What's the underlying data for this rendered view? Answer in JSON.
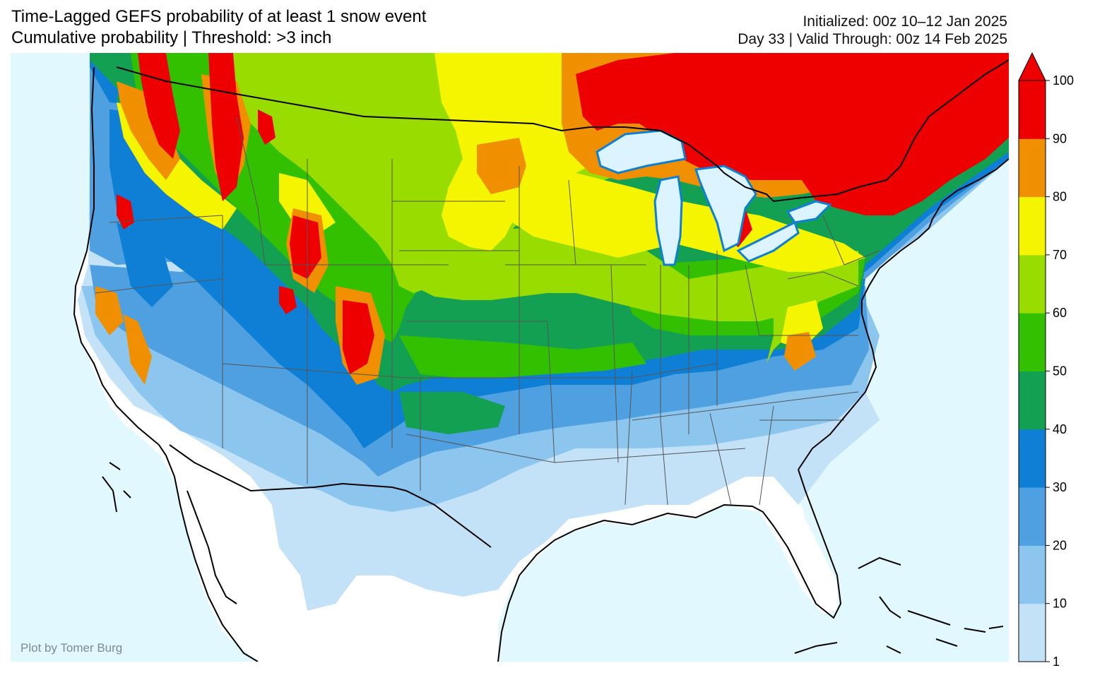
{
  "header": {
    "title_line1": "Time-Lagged GEFS probability of at least 1 snow event",
    "title_line2": "Cumulative probability | Threshold: >3 inch",
    "initialized": "Initialized: 00z 10–12 Jan 2025",
    "valid": "Day 33 | Valid Through: 00z 14 Feb 2025"
  },
  "credit": "Plot by Tomer Burg",
  "colorbar": {
    "ticks": [
      "1",
      "10",
      "20",
      "30",
      "40",
      "50",
      "60",
      "70",
      "80",
      "90",
      "100"
    ],
    "colors": [
      "#c3e2f8",
      "#8cc6ef",
      "#4ea0e0",
      "#0f7fd6",
      "#14a052",
      "#33c000",
      "#99dd00",
      "#f5f500",
      "#f09000",
      "#ee0000"
    ],
    "extend_color": "#ee0000"
  },
  "map_colors": {
    "ocean": "#e2f8ff",
    "land": "#ffffff",
    "lakes": "#dcf4ff",
    "border": "#000000",
    "state_lines": "#555555"
  }
}
